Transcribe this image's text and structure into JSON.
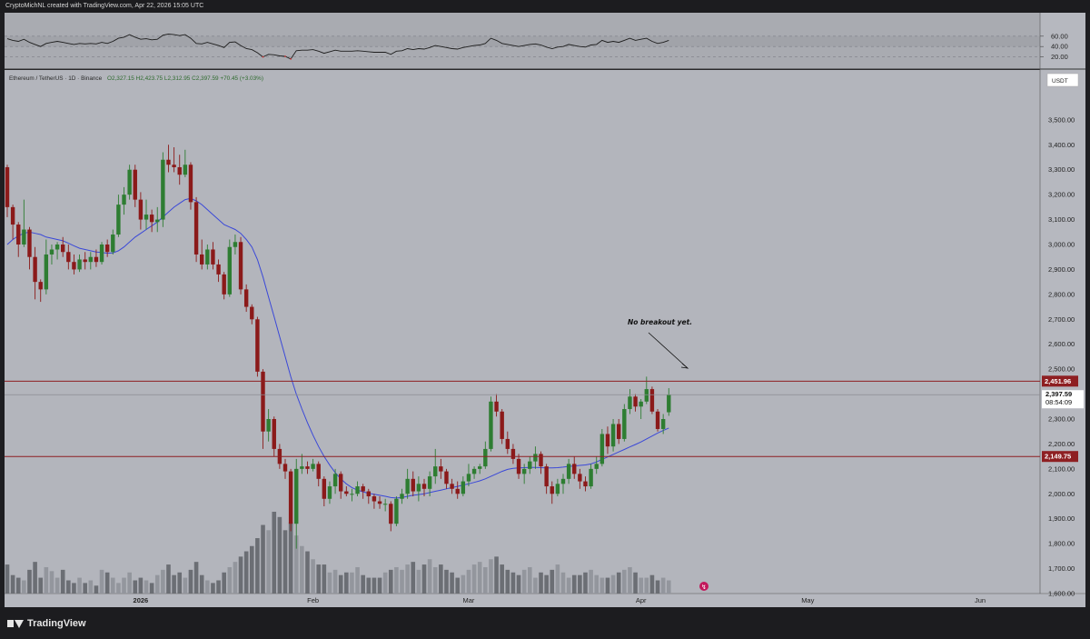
{
  "header": {
    "attribution": "CryptoMichNL created with TradingView.com, Apr 22, 2026 15:05 UTC"
  },
  "legend": {
    "symbol": "Ethereum / TetherUS · 1D · Binance",
    "ohlc": "O2,327.15  H2,423.75  L2,312.95  C2,397.59  +70.45 (+3.03%)"
  },
  "currency": "USDT",
  "footer": {
    "brand": "TradingView"
  },
  "annotation": {
    "text": "No breakout yet."
  },
  "colors": {
    "up": "#2e7d32",
    "down": "#8b1a1a",
    "ma": "#3a48d8",
    "resistance": "#8e1f22",
    "rsi": "#1d1d1d"
  },
  "chart_data": {
    "type": "candlestick",
    "price_range": [
      1600,
      3700
    ],
    "y_ticks": [
      1600,
      1700,
      1800,
      1900,
      2000,
      2100,
      2200,
      2300,
      2400,
      2500,
      2600,
      2700,
      2800,
      2900,
      3000,
      3100,
      3200,
      3300,
      3400,
      3500
    ],
    "y_tick_labels": [
      "1,600.00",
      "1,700.00",
      "1,800.00",
      "1,900.00",
      "2,000.00",
      "2,100.00",
      "2,200.00",
      "2,300.00",
      "2,400.00",
      "2,500.00",
      "2,600.00",
      "2,700.00",
      "2,800.00",
      "2,900.00",
      "3,000.00",
      "3,100.00",
      "3,200.00",
      "3,300.00",
      "3,400.00",
      "3,500.00"
    ],
    "x_ticks": [
      {
        "label": "2026",
        "day": 24,
        "bold": true
      },
      {
        "label": "Feb",
        "day": 55
      },
      {
        "label": "Mar",
        "day": 83
      },
      {
        "label": "Apr",
        "day": 114
      },
      {
        "label": "May",
        "day": 144
      },
      {
        "label": "Jun",
        "day": 175
      }
    ],
    "price_labels": [
      {
        "value": 2451.96,
        "label": "2,451.96",
        "type": "resistance"
      },
      {
        "value": 2397.59,
        "label": "2,397.59",
        "sub": "08:54:09",
        "type": "last"
      },
      {
        "value": 2149.75,
        "label": "2,149.75",
        "type": "support"
      }
    ],
    "candles": [
      [
        3310,
        3320,
        3110,
        3150
      ],
      [
        3150,
        3160,
        3020,
        3080
      ],
      [
        3080,
        3090,
        2950,
        3000
      ],
      [
        3000,
        3180,
        2990,
        3060
      ],
      [
        3060,
        3070,
        2900,
        2950
      ],
      [
        2950,
        2990,
        2780,
        2850
      ],
      [
        2850,
        2860,
        2770,
        2820
      ],
      [
        2820,
        3020,
        2800,
        2960
      ],
      [
        2960,
        3000,
        2920,
        2980
      ],
      [
        2980,
        3010,
        2940,
        3000
      ],
      [
        3000,
        3030,
        2950,
        2970
      ],
      [
        2970,
        3000,
        2900,
        2930
      ],
      [
        2930,
        2960,
        2880,
        2900
      ],
      [
        2900,
        2960,
        2890,
        2940
      ],
      [
        2940,
        2970,
        2900,
        2930
      ],
      [
        2930,
        2970,
        2900,
        2950
      ],
      [
        2950,
        2980,
        2910,
        2930
      ],
      [
        2930,
        3010,
        2920,
        3000
      ],
      [
        3000,
        3020,
        2950,
        2970
      ],
      [
        2970,
        3060,
        2960,
        3040
      ],
      [
        3040,
        3200,
        3030,
        3160
      ],
      [
        3160,
        3230,
        3120,
        3200
      ],
      [
        3200,
        3320,
        3180,
        3300
      ],
      [
        3300,
        3320,
        3150,
        3180
      ],
      [
        3180,
        3210,
        3060,
        3100
      ],
      [
        3100,
        3180,
        3060,
        3120
      ],
      [
        3120,
        3140,
        3050,
        3090
      ],
      [
        3090,
        3150,
        3050,
        3100
      ],
      [
        3100,
        3370,
        3070,
        3340
      ],
      [
        3340,
        3400,
        3290,
        3320
      ],
      [
        3320,
        3390,
        3290,
        3310
      ],
      [
        3310,
        3360,
        3240,
        3280
      ],
      [
        3280,
        3380,
        3270,
        3320
      ],
      [
        3320,
        3330,
        3140,
        3170
      ],
      [
        3170,
        3190,
        2930,
        2960
      ],
      [
        2960,
        3020,
        2900,
        2920
      ],
      [
        2920,
        3000,
        2900,
        2980
      ],
      [
        2980,
        3010,
        2900,
        2920
      ],
      [
        2920,
        2940,
        2850,
        2880
      ],
      [
        2880,
        2890,
        2780,
        2800
      ],
      [
        2800,
        3020,
        2790,
        2990
      ],
      [
        2990,
        3040,
        2960,
        3010
      ],
      [
        3010,
        3030,
        2800,
        2820
      ],
      [
        2820,
        2840,
        2730,
        2750
      ],
      [
        2750,
        2760,
        2680,
        2700
      ],
      [
        2700,
        2710,
        2470,
        2490
      ],
      [
        2490,
        2500,
        2180,
        2250
      ],
      [
        2250,
        2340,
        2210,
        2300
      ],
      [
        2300,
        2310,
        2150,
        2180
      ],
      [
        2180,
        2200,
        2100,
        2120
      ],
      [
        2120,
        2140,
        2060,
        2090
      ],
      [
        2090,
        2100,
        1850,
        1880
      ],
      [
        1880,
        2140,
        1780,
        2100
      ],
      [
        2100,
        2160,
        2080,
        2110
      ],
      [
        2110,
        2130,
        2080,
        2100
      ],
      [
        2100,
        2140,
        2090,
        2120
      ],
      [
        2120,
        2130,
        2030,
        2060
      ],
      [
        2060,
        2070,
        1950,
        1980
      ],
      [
        1980,
        2050,
        1960,
        2030
      ],
      [
        2030,
        2100,
        2000,
        2080
      ],
      [
        2080,
        2090,
        1980,
        2010
      ],
      [
        2010,
        2030,
        1990,
        2000
      ],
      [
        2000,
        2020,
        1970,
        2000
      ],
      [
        2000,
        2050,
        1990,
        2030
      ],
      [
        2030,
        2040,
        1980,
        2010
      ],
      [
        2010,
        2020,
        1960,
        1990
      ],
      [
        1990,
        2000,
        1940,
        1970
      ],
      [
        1970,
        1990,
        1940,
        1960
      ],
      [
        1960,
        1980,
        1930,
        1960
      ],
      [
        1960,
        1970,
        1850,
        1880
      ],
      [
        1880,
        1990,
        1870,
        1980
      ],
      [
        1980,
        2020,
        1960,
        2000
      ],
      [
        2000,
        2100,
        1980,
        2060
      ],
      [
        2060,
        2090,
        1990,
        2010
      ],
      [
        2010,
        2070,
        1970,
        2040
      ],
      [
        2040,
        2060,
        1990,
        2020
      ],
      [
        2020,
        2090,
        1990,
        2070
      ],
      [
        2070,
        2180,
        2040,
        2110
      ],
      [
        2110,
        2140,
        2060,
        2090
      ],
      [
        2090,
        2100,
        2020,
        2040
      ],
      [
        2040,
        2060,
        2000,
        2020
      ],
      [
        2020,
        2050,
        1980,
        2000
      ],
      [
        2000,
        2070,
        1990,
        2050
      ],
      [
        2050,
        2120,
        2030,
        2080
      ],
      [
        2080,
        2110,
        2060,
        2100
      ],
      [
        2100,
        2120,
        2080,
        2110
      ],
      [
        2110,
        2210,
        2100,
        2180
      ],
      [
        2180,
        2390,
        2170,
        2370
      ],
      [
        2370,
        2400,
        2310,
        2330
      ],
      [
        2330,
        2340,
        2200,
        2220
      ],
      [
        2220,
        2250,
        2160,
        2180
      ],
      [
        2180,
        2200,
        2120,
        2140
      ],
      [
        2140,
        2160,
        2060,
        2080
      ],
      [
        2080,
        2120,
        2040,
        2100
      ],
      [
        2100,
        2150,
        2080,
        2130
      ],
      [
        2130,
        2190,
        2100,
        2160
      ],
      [
        2160,
        2170,
        2080,
        2110
      ],
      [
        2110,
        2120,
        2000,
        2030
      ],
      [
        2030,
        2050,
        1960,
        2000
      ],
      [
        2000,
        2060,
        1990,
        2040
      ],
      [
        2040,
        2080,
        2000,
        2060
      ],
      [
        2060,
        2140,
        2040,
        2120
      ],
      [
        2120,
        2150,
        2060,
        2080
      ],
      [
        2080,
        2100,
        2020,
        2050
      ],
      [
        2050,
        2070,
        2010,
        2030
      ],
      [
        2030,
        2120,
        2020,
        2100
      ],
      [
        2100,
        2150,
        2080,
        2120
      ],
      [
        2120,
        2260,
        2110,
        2240
      ],
      [
        2240,
        2270,
        2160,
        2190
      ],
      [
        2190,
        2300,
        2170,
        2280
      ],
      [
        2280,
        2300,
        2200,
        2220
      ],
      [
        2220,
        2360,
        2210,
        2340
      ],
      [
        2340,
        2420,
        2320,
        2390
      ],
      [
        2390,
        2400,
        2330,
        2350
      ],
      [
        2350,
        2380,
        2300,
        2370
      ],
      [
        2370,
        2470,
        2360,
        2420
      ],
      [
        2420,
        2430,
        2320,
        2330
      ],
      [
        2330,
        2340,
        2250,
        2260
      ],
      [
        2260,
        2320,
        2240,
        2300
      ],
      [
        2327.15,
        2423.75,
        2312.95,
        2397.59
      ]
    ],
    "volume": [
      22,
      14,
      12,
      10,
      18,
      24,
      12,
      20,
      17,
      12,
      18,
      10,
      8,
      12,
      8,
      10,
      6,
      18,
      16,
      12,
      8,
      12,
      16,
      10,
      12,
      10,
      8,
      14,
      18,
      22,
      14,
      16,
      12,
      18,
      24,
      14,
      10,
      8,
      10,
      16,
      20,
      24,
      28,
      32,
      36,
      42,
      52,
      48,
      62,
      58,
      48,
      54,
      44,
      36,
      32,
      26,
      22,
      22,
      16,
      18,
      14,
      16,
      16,
      20,
      14,
      12,
      12,
      12,
      16,
      18,
      20,
      18,
      22,
      24,
      18,
      22,
      26,
      20,
      22,
      18,
      16,
      12,
      14,
      18,
      22,
      24,
      20,
      26,
      28,
      22,
      18,
      16,
      14,
      18,
      20,
      12,
      16,
      14,
      18,
      22,
      16,
      12,
      14,
      14,
      16,
      18,
      14,
      12,
      12,
      14,
      16,
      18,
      20,
      16,
      12,
      12,
      14,
      10,
      12,
      10
    ],
    "ma_series": [
      3000,
      3020,
      3035,
      3045,
      3050,
      3045,
      3040,
      3030,
      3025,
      3020,
      3015,
      3005,
      2995,
      2985,
      2980,
      2975,
      2970,
      2968,
      2965,
      2966,
      2975,
      2990,
      3010,
      3030,
      3045,
      3060,
      3075,
      3090,
      3110,
      3130,
      3150,
      3165,
      3180,
      3185,
      3175,
      3160,
      3140,
      3120,
      3100,
      3080,
      3070,
      3060,
      3045,
      3020,
      2990,
      2940,
      2870,
      2790,
      2710,
      2630,
      2550,
      2470,
      2400,
      2340,
      2285,
      2235,
      2190,
      2150,
      2115,
      2085,
      2060,
      2040,
      2025,
      2015,
      2008,
      2002,
      1998,
      1994,
      1990,
      1985,
      1983,
      1985,
      1990,
      1994,
      1997,
      2000,
      2005,
      2010,
      2015,
      2020,
      2025,
      2030,
      2035,
      2040,
      2046,
      2052,
      2060,
      2070,
      2080,
      2090,
      2098,
      2102,
      2104,
      2105,
      2106,
      2106,
      2105,
      2104,
      2104,
      2105,
      2107,
      2110,
      2112,
      2114,
      2116,
      2120,
      2128,
      2138,
      2148,
      2158,
      2168,
      2178,
      2188,
      2198,
      2208,
      2220,
      2232,
      2244,
      2254,
      2264
    ],
    "rsi": [
      55,
      52,
      50,
      54,
      48,
      44,
      40,
      46,
      48,
      50,
      48,
      46,
      44,
      46,
      45,
      46,
      45,
      48,
      46,
      50,
      56,
      58,
      63,
      58,
      54,
      55,
      53,
      54,
      62,
      64,
      63,
      61,
      63,
      56,
      46,
      45,
      48,
      45,
      42,
      38,
      48,
      49,
      42,
      36,
      34,
      28,
      20,
      25,
      24,
      22,
      21,
      16,
      32,
      33,
      33,
      34,
      31,
      27,
      30,
      33,
      31,
      31,
      31,
      32,
      31,
      30,
      29,
      29,
      29,
      25,
      31,
      32,
      36,
      34,
      36,
      35,
      38,
      42,
      40,
      38,
      36,
      35,
      38,
      40,
      42,
      43,
      46,
      56,
      52,
      46,
      44,
      42,
      40,
      42,
      44,
      45,
      43,
      39,
      36,
      39,
      40,
      44,
      42,
      40,
      39,
      43,
      44,
      52,
      48,
      50,
      48,
      52,
      56,
      52,
      54,
      56,
      50,
      46,
      48,
      52
    ],
    "rsi_ticks": [
      {
        "value": 60,
        "label": "60.00"
      },
      {
        "value": 40,
        "label": "40.00"
      },
      {
        "value": 20,
        "label": "20.00"
      }
    ]
  }
}
